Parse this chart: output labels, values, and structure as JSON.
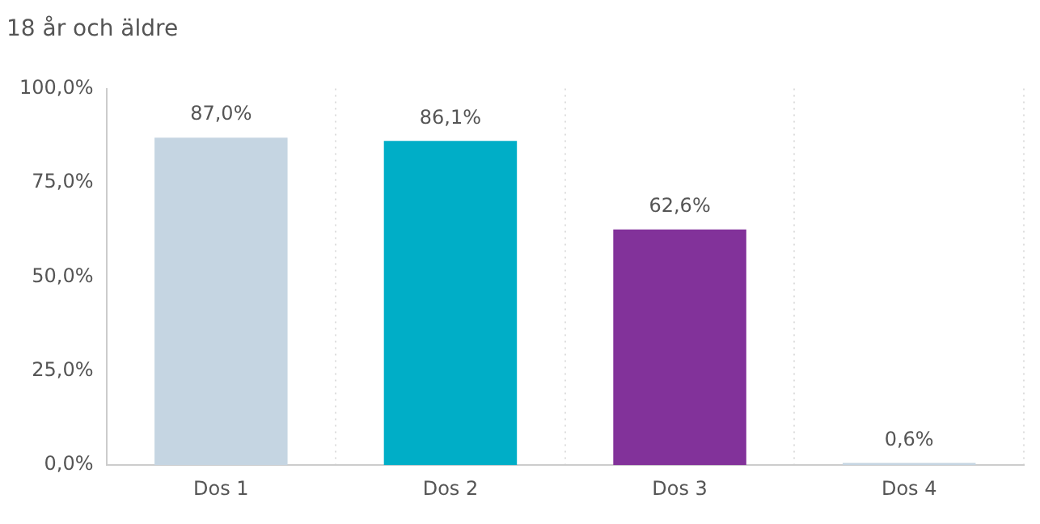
{
  "chart_data": {
    "type": "bar",
    "title": "18 år och äldre",
    "categories": [
      "Dos 1",
      "Dos 2",
      "Dos 3",
      "Dos 4"
    ],
    "values": [
      87.0,
      86.1,
      62.6,
      0.6
    ],
    "colors": [
      "#c5d5e2",
      "#00aec7",
      "#82329a",
      "#c5d5e2"
    ],
    "value_labels": [
      "87,0%",
      "86,1%",
      "62,6%",
      "0,6%"
    ],
    "ylim": [
      0,
      100
    ],
    "yticks": [
      {
        "value": 0,
        "label": "0,0%"
      },
      {
        "value": 25,
        "label": "25,0%"
      },
      {
        "value": 50,
        "label": "50,0%"
      },
      {
        "value": 75,
        "label": "75,0%"
      },
      {
        "value": 100,
        "label": "100,0%"
      }
    ],
    "grid": "x",
    "legend": false
  }
}
